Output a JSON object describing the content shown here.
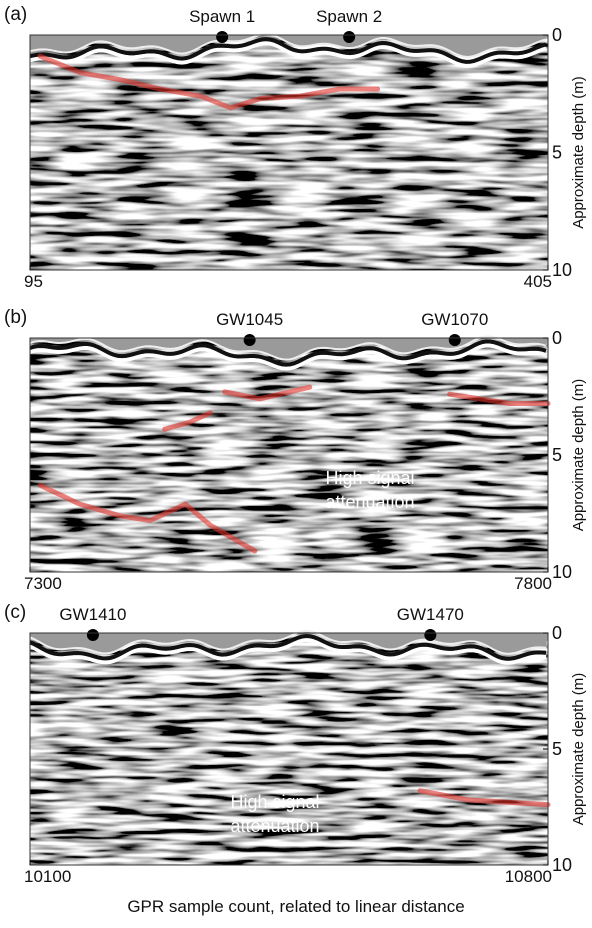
{
  "chart_data": [
    {
      "type": "radargram",
      "panel_label": "(a)",
      "ylabel": "Approximate depth (m)",
      "xlim": [
        95,
        405
      ],
      "xticks": [
        95,
        405
      ],
      "ylim": [
        0,
        10
      ],
      "yticks": [
        0,
        5,
        10
      ],
      "markers": [
        {
          "label": "Spawn 1",
          "x": 210
        },
        {
          "label": "Spawn 2",
          "x": 286
        }
      ],
      "series": [
        {
          "color": "#e0302a",
          "x": [
            101,
            125,
            149,
            173,
            197,
            215,
            233,
            257,
            280,
            303
          ],
          "values": [
            0.9,
            1.6,
            1.9,
            2.3,
            2.6,
            3.1,
            2.7,
            2.6,
            2.3,
            2.3
          ]
        }
      ]
    },
    {
      "type": "radargram",
      "panel_label": "(b)",
      "ylabel": "Approximate depth (m)",
      "xlim": [
        7300,
        7800
      ],
      "xticks": [
        7300,
        7800
      ],
      "ylim": [
        0,
        10
      ],
      "yticks": [
        0,
        5,
        10
      ],
      "markers": [
        {
          "label": "GW1045",
          "x": 7512
        },
        {
          "label": "GW1070",
          "x": 7710
        }
      ],
      "annotations": [
        "High signal attenuation"
      ],
      "series": [
        {
          "color": "#e0302a",
          "x": [
            7310,
            7348,
            7387,
            7416,
            7450,
            7474,
            7517
          ],
          "values": [
            6.3,
            7.1,
            7.6,
            7.8,
            7.1,
            8.0,
            9.1
          ]
        },
        {
          "color": "#e0302a",
          "x": [
            7430,
            7454,
            7474
          ],
          "values": [
            3.9,
            3.6,
            3.2
          ]
        },
        {
          "color": "#e0302a",
          "x": [
            7488,
            7522,
            7570
          ],
          "values": [
            2.3,
            2.6,
            2.1
          ]
        },
        {
          "color": "#e0302a",
          "x": [
            7705,
            7734,
            7763,
            7800
          ],
          "values": [
            2.4,
            2.6,
            2.8,
            2.8
          ]
        }
      ]
    },
    {
      "type": "radargram",
      "panel_label": "(c)",
      "ylabel": "Approximate depth (m)",
      "xlim": [
        10100,
        10800
      ],
      "xticks": [
        10100,
        10800
      ],
      "ylim": [
        0,
        10
      ],
      "yticks": [
        0,
        5,
        10
      ],
      "markers": [
        {
          "label": "GW1410",
          "x": 10185
        },
        {
          "label": "GW1470",
          "x": 10641
        }
      ],
      "annotations": [
        "High signal attenuation"
      ],
      "series": [
        {
          "color": "#e0302a",
          "x": [
            10627,
            10694,
            10748,
            10800
          ],
          "values": [
            6.8,
            7.2,
            7.3,
            7.4
          ]
        }
      ]
    }
  ],
  "xlabel": "GPR sample count, related to linear distance"
}
